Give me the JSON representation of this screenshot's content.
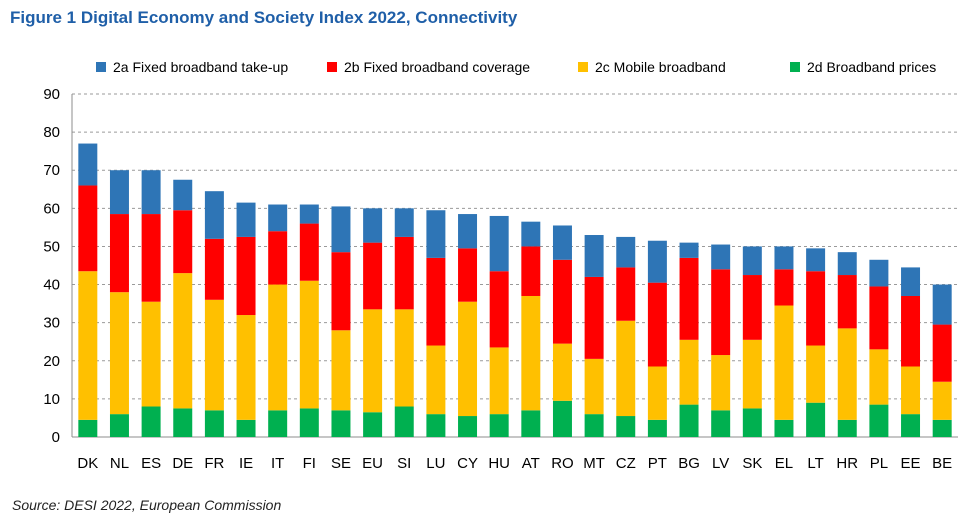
{
  "figure": {
    "title": "Figure 1 Digital Economy and Society Index 2022, Connectivity",
    "source": "Source: DESI 2022, European Commission"
  },
  "chart_data": {
    "type": "bar",
    "stacked": true,
    "title": "Figure 1 Digital Economy and Society Index 2022, Connectivity",
    "xlabel": "",
    "ylabel": "",
    "ylim": [
      0,
      90
    ],
    "yticks": [
      0,
      10,
      20,
      30,
      40,
      50,
      60,
      70,
      80,
      90
    ],
    "grid": "horizontal dashed",
    "legend_position": "top",
    "categories": [
      "DK",
      "NL",
      "ES",
      "DE",
      "FR",
      "IE",
      "IT",
      "FI",
      "SE",
      "EU",
      "SI",
      "LU",
      "CY",
      "HU",
      "AT",
      "RO",
      "MT",
      "CZ",
      "PT",
      "BG",
      "LV",
      "SK",
      "EL",
      "LT",
      "HR",
      "PL",
      "EE",
      "BE"
    ],
    "series": [
      {
        "name": "2d Broadband prices",
        "color": "#00b050",
        "values": [
          4.5,
          6,
          8,
          7.5,
          7,
          4.5,
          7,
          7.5,
          7,
          6.5,
          8,
          6,
          5.5,
          6,
          7,
          9.5,
          6,
          5.5,
          4.5,
          8.5,
          7,
          7.5,
          4.5,
          9,
          4.5,
          8.5,
          6,
          4.5
        ]
      },
      {
        "name": "2c Mobile broadband",
        "color": "#ffc000",
        "values": [
          39,
          32,
          27.5,
          35.5,
          29,
          27.5,
          33,
          33.5,
          21,
          27,
          25.5,
          18,
          30,
          17.5,
          30,
          15,
          14.5,
          25,
          14,
          17,
          14.5,
          18,
          30,
          15,
          24,
          14.5,
          12.5,
          10
        ]
      },
      {
        "name": "2b Fixed broadband coverage",
        "color": "#ff0000",
        "values": [
          22.5,
          20.5,
          23,
          16.5,
          16,
          20.5,
          14,
          15,
          20.5,
          17.5,
          19,
          23,
          14,
          20,
          13,
          22,
          21.5,
          14,
          22,
          21.5,
          22.5,
          17,
          9.5,
          19.5,
          14,
          16.5,
          18.5,
          15
        ]
      },
      {
        "name": "2a Fixed broadband take-up",
        "color": "#2e75b6",
        "values": [
          11,
          11.5,
          11.5,
          8,
          12.5,
          9,
          7,
          5,
          12,
          9,
          7.5,
          12.5,
          9,
          14.5,
          6.5,
          9,
          11,
          8,
          11,
          4,
          6.5,
          7.5,
          6,
          6,
          6,
          7,
          7.5,
          10.5
        ]
      }
    ]
  }
}
